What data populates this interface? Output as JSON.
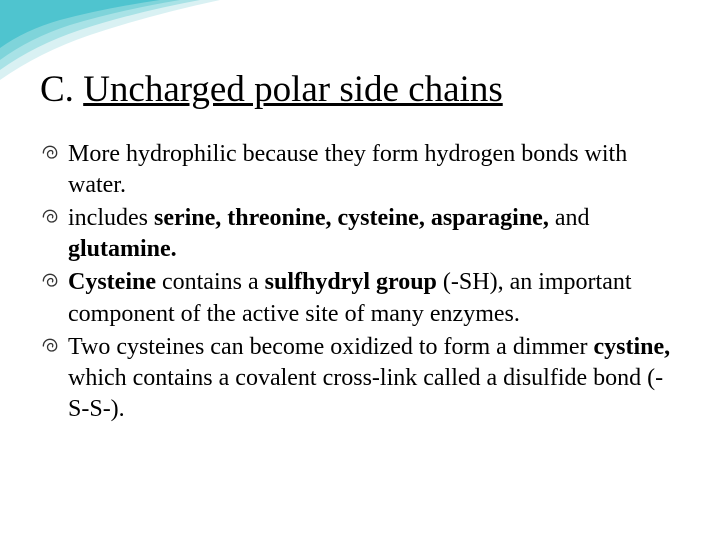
{
  "slide": {
    "background_color": "#ffffff",
    "text_color": "#000000",
    "font_family": "Times New Roman",
    "title": {
      "prefix": "C. ",
      "main": "Uncharged polar side chains",
      "fontsize": 37,
      "underline_main": true
    },
    "bullet_style": {
      "glyph": "swirl",
      "fontsize": 24,
      "icon_color": "#333333"
    },
    "bullets": [
      {
        "runs": [
          {
            "text": "More hydrophilic because they form hydrogen bonds with water.",
            "bold": false
          }
        ]
      },
      {
        "runs": [
          {
            "text": "includes ",
            "bold": false
          },
          {
            "text": "serine, threonine, cysteine, asparagine, ",
            "bold": true
          },
          {
            "text": "and ",
            "bold": false
          },
          {
            "text": "glutamine.",
            "bold": true
          }
        ]
      },
      {
        "runs": [
          {
            "text": "Cysteine ",
            "bold": true
          },
          {
            "text": "contains a ",
            "bold": false
          },
          {
            "text": "sulfhydryl group ",
            "bold": true
          },
          {
            "text": "(-SH), an important component of the active site of many enzymes.",
            "bold": false
          }
        ]
      },
      {
        "runs": [
          {
            "text": "Two cysteines can become oxidized to form a dimmer ",
            "bold": false
          },
          {
            "text": "cystine, ",
            "bold": true
          },
          {
            "text": "which contains a covalent cross-link called a disulfide bond (-S-S-).",
            "bold": false
          }
        ]
      }
    ],
    "decoration": {
      "type": "corner-swoosh",
      "colors": [
        "#4fc4cf",
        "#7fd4da",
        "#a8e2e6",
        "#d0eff1"
      ],
      "position": "top-left"
    }
  }
}
